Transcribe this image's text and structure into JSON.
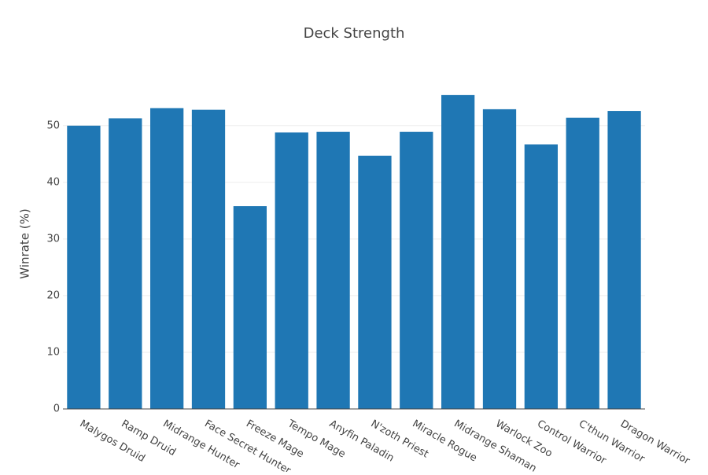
{
  "chart_data": {
    "type": "bar",
    "title": "Deck Strength",
    "y_label": "Winrate (%)",
    "categories": [
      "Malygos Druid",
      "Ramp Druid",
      "Midrange Hunter",
      "Face Secret Hunter",
      "Freeze Mage",
      "Tempo Mage",
      "Anyfin Paladin",
      "N'zoth Priest",
      "Miracle Rogue",
      "Midrange Shaman",
      "Warlock Zoo",
      "Control Warrior",
      "C'thun Warrior",
      "Dragon Warrior"
    ],
    "values": [
      50.0,
      51.3,
      53.1,
      52.8,
      35.8,
      48.8,
      48.9,
      44.7,
      48.9,
      55.4,
      52.9,
      46.7,
      51.4,
      52.6
    ],
    "color": "#1f77b4",
    "ylim": [
      0,
      58.3
    ],
    "yticks": [
      0,
      10,
      20,
      30,
      40,
      50
    ],
    "grid": true
  }
}
